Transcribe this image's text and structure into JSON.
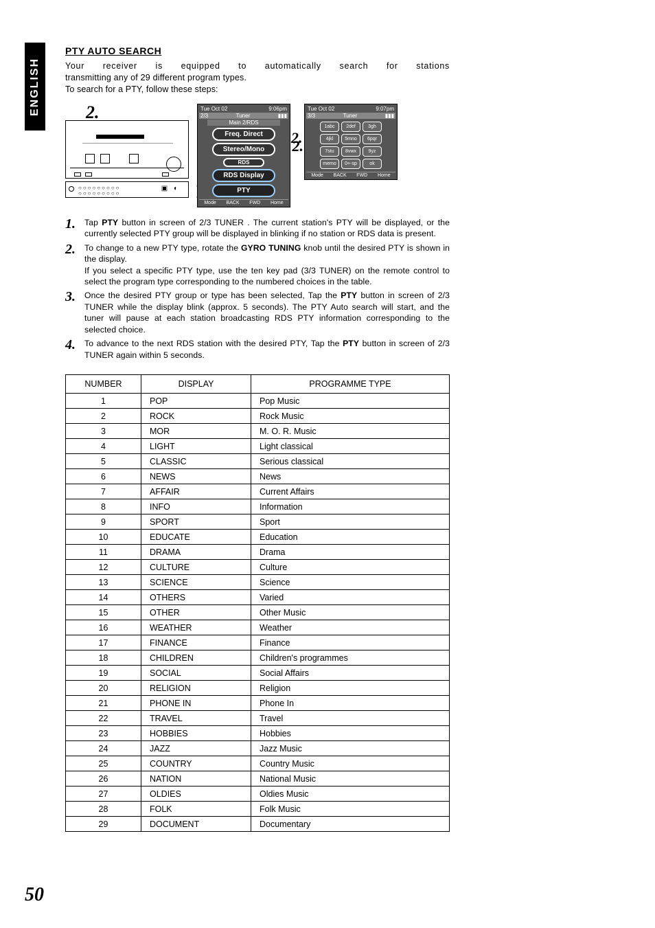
{
  "language_tab": "ENGLISH",
  "page_number": "50",
  "section_title": "PTY AUTO SEARCH",
  "intro": {
    "line1": "Your receiver is equipped to automatically search for stations",
    "line2": "transmitting any of 29 different program types.",
    "line3": "To search for a PTY, follow these steps:"
  },
  "figures": {
    "receiver_callout_top": "2.",
    "receiver_side_nums": "1.\n3.\n4.",
    "screen1": {
      "time_left": "Tue Oct 02",
      "time_right": "9:06pm",
      "sub_left": "2/3",
      "sub_mid": "Tuner",
      "sub_bar": "Main 2/RDS",
      "btn1": "Freq. Direct",
      "btn2": "Stereo/Mono",
      "btn3": "RDS",
      "btn4": "RDS Display",
      "btn5": "PTY",
      "footer": [
        "Mode",
        "BACK",
        "FWD",
        "Home"
      ],
      "callout": "2."
    },
    "screen2": {
      "time_left": "Tue Oct 02",
      "time_right": "9:07pm",
      "sub_left": "3/3",
      "sub_mid": "Tuner",
      "keys": [
        "1abc",
        "2def",
        "3gh",
        "4jkl",
        "5mno",
        "6pqr",
        "7stu",
        "8vwx",
        "9yz",
        "memo",
        "0+-sp",
        "ok"
      ],
      "footer": [
        "Mode",
        "BACK",
        "FWD",
        "Home"
      ],
      "callout": "2."
    }
  },
  "steps": [
    {
      "n": "1.",
      "html": "Tap <b>PTY</b> button in screen of 2/3 TUNER . The current station's PTY will be displayed, or the currently selected PTY group will be displayed in blinking if no station or RDS data is present."
    },
    {
      "n": "2.",
      "html": "To change to a new PTY type, rotate the <b>GYRO TUNING</b> knob until the desired PTY is shown in the display.<br>If you select a specific PTY type, use the ten key pad (3/3 TUNER) on the remote control to select the program type corresponding to the numbered choices in the table."
    },
    {
      "n": "3.",
      "html": "Once the desired PTY group or type has been selected, Tap the <b>PTY</b> button in screen of 2/3 TUNER while the display blink (approx. 5 seconds). The PTY Auto search will start, and the tuner will pause at each station broadcasting RDS PTY information corresponding to the selected choice."
    },
    {
      "n": "4.",
      "html": "To advance to the next RDS station with the desired PTY, Tap the <b>PTY</b> button in screen of 2/3 TUNER again within 5 seconds."
    }
  ],
  "table": {
    "headers": [
      "NUMBER",
      "DISPLAY",
      "PROGRAMME TYPE"
    ],
    "rows": [
      [
        "1",
        "POP",
        "Pop Music"
      ],
      [
        "2",
        "ROCK",
        "Rock Music"
      ],
      [
        "3",
        "MOR",
        "M. O. R. Music"
      ],
      [
        "4",
        "LIGHT",
        "Light classical"
      ],
      [
        "5",
        "CLASSIC",
        "Serious classical"
      ],
      [
        "6",
        "NEWS",
        "News"
      ],
      [
        "7",
        "AFFAIR",
        "Current Affairs"
      ],
      [
        "8",
        "INFO",
        "Information"
      ],
      [
        "9",
        "SPORT",
        "Sport"
      ],
      [
        "10",
        "EDUCATE",
        "Education"
      ],
      [
        "11",
        "DRAMA",
        "Drama"
      ],
      [
        "12",
        "CULTURE",
        "Culture"
      ],
      [
        "13",
        "SCIENCE",
        "Science"
      ],
      [
        "14",
        "OTHERS",
        "Varied"
      ],
      [
        "15",
        "OTHER",
        "Other Music"
      ],
      [
        "16",
        "WEATHER",
        "Weather"
      ],
      [
        "17",
        "FINANCE",
        "Finance"
      ],
      [
        "18",
        "CHILDREN",
        "Children's programmes"
      ],
      [
        "19",
        "SOCIAL",
        "Social Affairs"
      ],
      [
        "20",
        "RELIGION",
        "Religion"
      ],
      [
        "21",
        "PHONE IN",
        "Phone In"
      ],
      [
        "22",
        "TRAVEL",
        "Travel"
      ],
      [
        "23",
        "HOBBIES",
        "Hobbies"
      ],
      [
        "24",
        "JAZZ",
        "Jazz Music"
      ],
      [
        "25",
        "COUNTRY",
        "Country Music"
      ],
      [
        "26",
        "NATION",
        "National Music"
      ],
      [
        "27",
        "OLDIES",
        "Oldies Music"
      ],
      [
        "28",
        "FOLK",
        "Folk Music"
      ],
      [
        "29",
        "DOCUMENT",
        "Documentary"
      ]
    ]
  }
}
